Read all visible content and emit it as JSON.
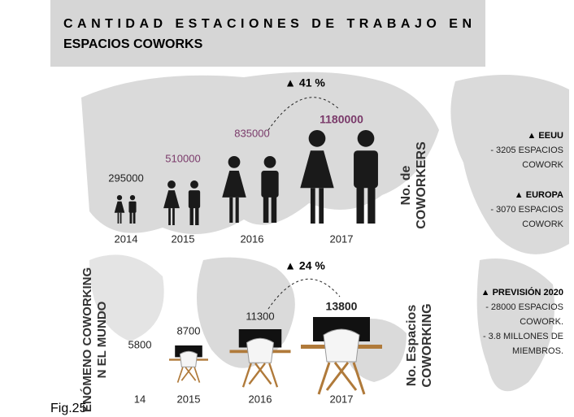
{
  "header": {
    "title_lines": [
      "CANTIDAD ESTACIONES DE TRABAJO EN",
      "ESPACIOS COWORKS"
    ]
  },
  "side_label": {
    "lines": [
      "ENÓMENO COWORKING",
      "N EL MUNDO"
    ]
  },
  "workers": {
    "label_lines": [
      "No. de",
      "COWORKERS"
    ],
    "growth": "▲ 41 %",
    "items": [
      {
        "year": "2014",
        "value": "295000"
      },
      {
        "year": "2015",
        "value": "510000"
      },
      {
        "year": "2016",
        "value": "835000"
      },
      {
        "year": "2017",
        "value": "1180000"
      }
    ]
  },
  "spaces": {
    "label_lines": [
      "No. Espacios",
      "COWORKING"
    ],
    "growth": "▲ 24 %",
    "items": [
      {
        "year": "14",
        "value": "5800"
      },
      {
        "year": "2015",
        "value": "8700"
      },
      {
        "year": "2016",
        "value": "11300"
      },
      {
        "year": "2017",
        "value": "13800"
      }
    ]
  },
  "regions": [
    {
      "title": "▲ EEUU",
      "lines": [
        "- 3205 ESPACIOS",
        "COWORK"
      ]
    },
    {
      "title": "▲ EUROPA",
      "lines": [
        "- 3070 ESPACIOS",
        "COWORK"
      ]
    },
    {
      "title": "▲ PREVISIÓN 2020",
      "lines": [
        "- 28000  ESPACIOS",
        "COWORK.",
        "- 3.8 MILLONES DE",
        "MIEMBROS."
      ]
    }
  ],
  "caption": "Fig.25"
}
